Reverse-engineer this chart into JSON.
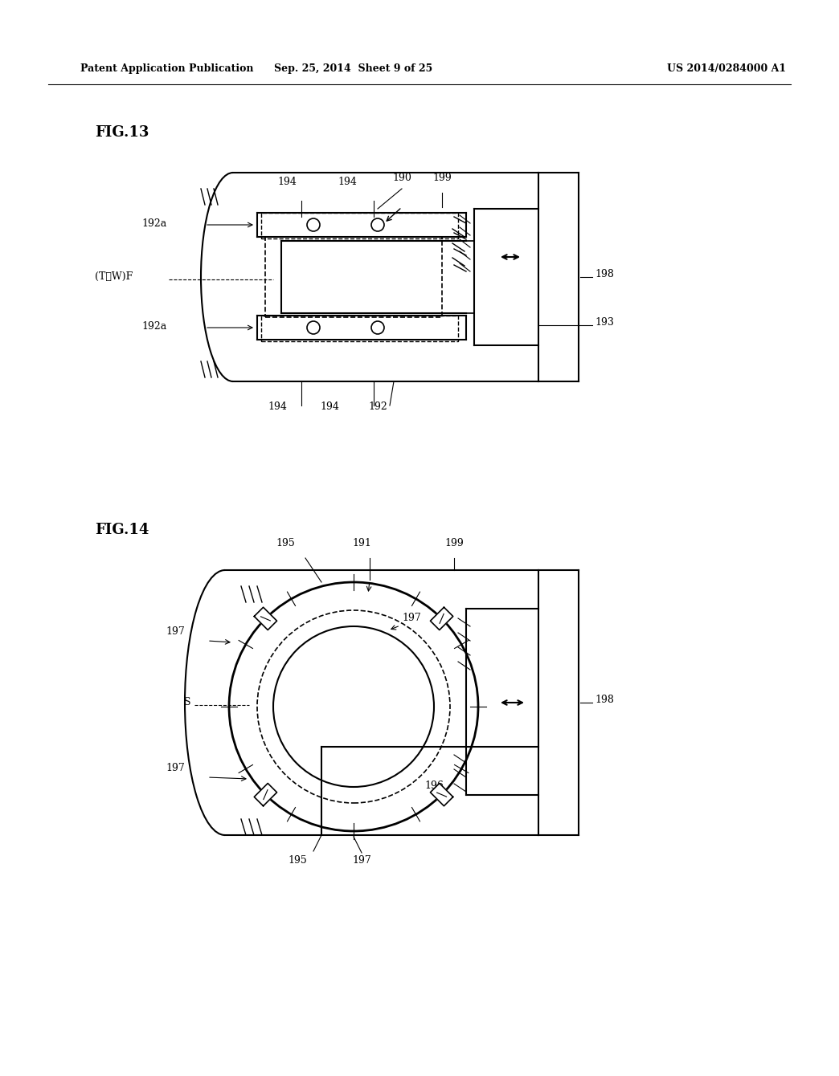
{
  "header_left": "Patent Application Publication",
  "header_mid": "Sep. 25, 2014  Sheet 9 of 25",
  "header_right": "US 2014/0284000 A1",
  "fig13_label": "FIG.13",
  "fig14_label": "FIG.14",
  "bg_color": "#ffffff",
  "line_color": "#000000",
  "dashed_color": "#000000"
}
